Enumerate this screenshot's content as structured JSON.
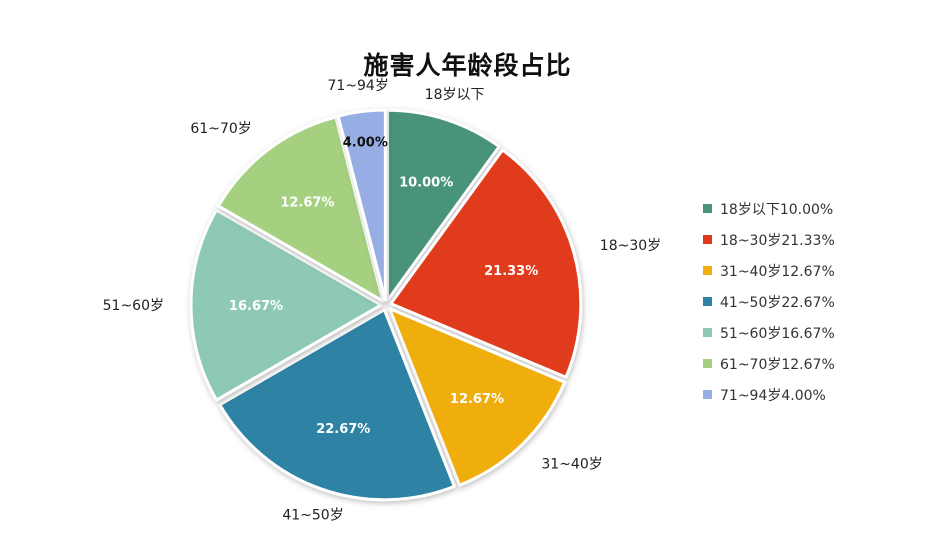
{
  "chart_data": {
    "type": "pie",
    "title": "施害人年龄段占比",
    "slices": [
      {
        "category": "18岁以下",
        "value": 10.0,
        "value_label": "10.00%",
        "legend": "18岁以下10.00%",
        "color": "#4a9479"
      },
      {
        "category": "18~30岁",
        "value": 21.33,
        "value_label": "21.33%",
        "legend": "18~30岁21.33%",
        "color": "#e03a1a"
      },
      {
        "category": "31~40岁",
        "value": 12.67,
        "value_label": "12.67%",
        "legend": "31~40岁12.67%",
        "color": "#f0ae10"
      },
      {
        "category": "41~50岁",
        "value": 22.67,
        "value_label": "22.67%",
        "legend": "41~50岁22.67%",
        "color": "#2f82a3"
      },
      {
        "category": "51~60岁",
        "value": 16.67,
        "value_label": "16.67%",
        "legend": "51~60岁16.67%",
        "color": "#8ec9b4"
      },
      {
        "category": "61~70岁",
        "value": 12.67,
        "value_label": "12.67%",
        "legend": "61~70岁12.67%",
        "color": "#a4d080"
      },
      {
        "category": "71~94岁",
        "value": 4.0,
        "value_label": "4.00%",
        "legend": "71~94岁4.00%",
        "color": "#97aee4"
      }
    ],
    "legend_position": "right",
    "start_angle": "12 o'clock",
    "direction": "clockwise"
  }
}
